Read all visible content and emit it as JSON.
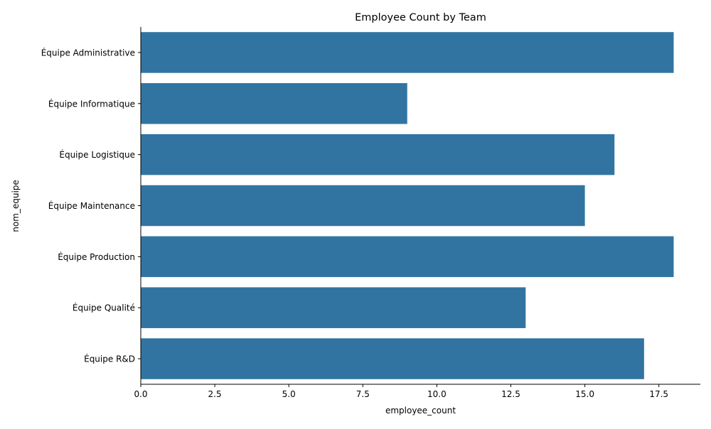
{
  "chart_data": {
    "type": "bar",
    "orientation": "horizontal",
    "title": "Employee Count by Team",
    "xlabel": "employee_count",
    "ylabel": "nom_equipe",
    "categories": [
      "Équipe Administrative",
      "Équipe Informatique",
      "Équipe Logistique",
      "Équipe Maintenance",
      "Équipe Production",
      "Équipe Qualité",
      "Équipe R&D"
    ],
    "values": [
      18,
      9,
      16,
      15,
      18,
      13,
      17
    ],
    "xlim": [
      0,
      18.9
    ],
    "xticks": [
      0.0,
      2.5,
      5.0,
      7.5,
      10.0,
      12.5,
      15.0,
      17.5
    ],
    "xtick_labels": [
      "0.0",
      "2.5",
      "5.0",
      "7.5",
      "10.0",
      "12.5",
      "15.0",
      "17.5"
    ],
    "bar_color": "#3274a1",
    "grid": false,
    "legend": "none"
  }
}
